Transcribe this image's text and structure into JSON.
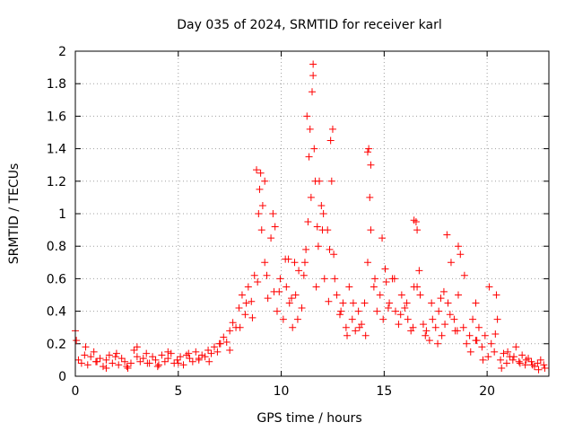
{
  "chart_data": {
    "type": "scatter",
    "title": "Day 035 of 2024, SRMTID for receiver karl",
    "xlabel": "GPS time / hours",
    "ylabel": "SRMTID / TECUs",
    "xlim": [
      0,
      23
    ],
    "ylim": [
      0,
      2
    ],
    "xticks": [
      "0",
      "5",
      "10",
      "15",
      "20"
    ],
    "xtick_values": [
      0,
      5,
      10,
      15,
      20
    ],
    "yticks": [
      "0",
      "0.2",
      "0.4",
      "0.6",
      "0.8",
      "1",
      "1.2",
      "1.4",
      "1.6",
      "1.8",
      "2"
    ],
    "ytick_values": [
      0,
      0.2,
      0.4,
      0.6,
      0.8,
      1.0,
      1.2,
      1.4,
      1.6,
      1.8,
      2.0
    ],
    "grid": true,
    "marker": "+",
    "series": [
      {
        "name": "SRMTID",
        "color": "#ff0000",
        "x": [
          0,
          0.15,
          0.3,
          0.45,
          0.6,
          0.75,
          0.9,
          1.05,
          1.2,
          1.35,
          1.5,
          1.65,
          1.8,
          1.95,
          2.1,
          2.25,
          2.4,
          2.55,
          2.7,
          2.85,
          3.0,
          3.15,
          3.3,
          3.45,
          3.6,
          3.75,
          3.9,
          4.05,
          4.2,
          4.35,
          4.5,
          4.65,
          4.8,
          4.95,
          5.1,
          5.25,
          5.4,
          5.55,
          5.7,
          5.85,
          6.0,
          6.15,
          6.3,
          6.45,
          6.6,
          6.75,
          6.9,
          7.05,
          7.2,
          7.35,
          7.5,
          7.65,
          7.8,
          7.95,
          8.1,
          8.25,
          8.4,
          8.55,
          8.7,
          8.85,
          8.95,
          9.05,
          9.2,
          9.35,
          9.5,
          9.65,
          9.8,
          9.95,
          10.1,
          10.25,
          10.4,
          10.55,
          10.7,
          10.85,
          11.0,
          11.15,
          11.3,
          11.45,
          11.55,
          11.65,
          11.8,
          11.95,
          12.1,
          12.25,
          12.4,
          12.55,
          12.7,
          12.85,
          13.0,
          13.15,
          13.3,
          13.45,
          13.6,
          13.75,
          13.9,
          14.05,
          14.2,
          14.35,
          14.5,
          14.65,
          14.8,
          14.95,
          15.1,
          15.25,
          15.4,
          15.55,
          15.7,
          15.85,
          16.0,
          16.15,
          16.3,
          16.45,
          16.6,
          16.75,
          16.9,
          17.05,
          17.2,
          17.35,
          17.5,
          17.65,
          17.8,
          17.95,
          18.1,
          18.25,
          18.4,
          18.55,
          18.7,
          18.85,
          19.0,
          19.15,
          19.3,
          19.45,
          19.6,
          19.75,
          19.9,
          20.05,
          20.2,
          20.35,
          20.5,
          20.65,
          20.8,
          20.95,
          21.1,
          21.25,
          21.4,
          21.55,
          21.7,
          21.85,
          22.0,
          22.15,
          22.3,
          22.45,
          22.6,
          22.75,
          0.05,
          0.5,
          1.0,
          1.5,
          2.0,
          2.5,
          3.0,
          3.5,
          4.0,
          4.5,
          5.0,
          5.5,
          6.0,
          6.5,
          7.0,
          7.5,
          8.0,
          8.3,
          8.6,
          8.9,
          9.0,
          9.1,
          9.3,
          9.6,
          9.9,
          10.2,
          10.5,
          10.8,
          11.1,
          11.25,
          11.35,
          11.5,
          11.6,
          11.7,
          11.85,
          12.0,
          12.3,
          12.45,
          12.6,
          12.9,
          13.2,
          13.5,
          13.8,
          14.1,
          14.25,
          14.3,
          14.55,
          14.9,
          15.2,
          15.5,
          15.8,
          16.1,
          16.4,
          16.55,
          16.7,
          17.0,
          17.3,
          17.6,
          17.9,
          18.2,
          18.45,
          18.6,
          18.9,
          19.2,
          19.5,
          19.8,
          20.1,
          20.4,
          20.7,
          21.0,
          21.3,
          21.6,
          21.9,
          22.2,
          22.5,
          22.8,
          8.8,
          9.2,
          9.7,
          10.35,
          10.65,
          11.2,
          11.4,
          11.55,
          11.75,
          12.05,
          12.35,
          12.5,
          14.2,
          14.35,
          15.05,
          16.45,
          16.6,
          17.75,
          18.05,
          18.6,
          19.45,
          20.45
        ],
        "y": [
          0.28,
          0.1,
          0.08,
          0.13,
          0.07,
          0.12,
          0.15,
          0.09,
          0.11,
          0.06,
          0.1,
          0.13,
          0.08,
          0.12,
          0.07,
          0.11,
          0.09,
          0.05,
          0.08,
          0.16,
          0.12,
          0.09,
          0.11,
          0.14,
          0.08,
          0.12,
          0.1,
          0.07,
          0.13,
          0.09,
          0.11,
          0.14,
          0.08,
          0.1,
          0.12,
          0.07,
          0.13,
          0.11,
          0.09,
          0.15,
          0.1,
          0.13,
          0.12,
          0.16,
          0.14,
          0.18,
          0.15,
          0.2,
          0.24,
          0.21,
          0.28,
          0.33,
          0.3,
          0.42,
          0.5,
          0.38,
          0.55,
          0.46,
          0.62,
          0.58,
          1.15,
          0.9,
          0.7,
          0.48,
          0.85,
          0.52,
          0.4,
          0.6,
          0.35,
          0.55,
          0.45,
          0.3,
          0.5,
          0.65,
          0.42,
          0.7,
          0.95,
          1.1,
          1.85,
          1.2,
          0.8,
          1.05,
          0.6,
          0.9,
          1.45,
          0.75,
          0.5,
          0.38,
          0.45,
          0.3,
          0.55,
          0.35,
          0.28,
          0.4,
          0.32,
          0.45,
          0.7,
          1.3,
          0.55,
          0.4,
          0.5,
          0.35,
          0.58,
          0.45,
          0.6,
          0.4,
          0.32,
          0.5,
          0.42,
          0.35,
          0.28,
          0.55,
          0.9,
          0.5,
          0.32,
          0.28,
          0.22,
          0.35,
          0.3,
          0.4,
          0.25,
          0.32,
          0.45,
          0.7,
          0.35,
          0.28,
          0.75,
          0.3,
          0.2,
          0.25,
          0.35,
          0.22,
          0.3,
          0.18,
          0.25,
          0.12,
          0.2,
          0.15,
          0.35,
          0.1,
          0.14,
          0.08,
          0.12,
          0.1,
          0.18,
          0.09,
          0.13,
          0.07,
          0.11,
          0.09,
          0.06,
          0.08,
          0.1,
          0.07,
          0.22,
          0.18,
          0.09,
          0.05,
          0.14,
          0.06,
          0.18,
          0.08,
          0.06,
          0.15,
          0.08,
          0.14,
          0.11,
          0.09,
          0.2,
          0.16,
          0.3,
          0.45,
          0.36,
          1.0,
          1.25,
          1.05,
          0.62,
          1.0,
          0.52,
          0.72,
          0.48,
          0.35,
          0.62,
          1.6,
          1.35,
          1.75,
          1.4,
          0.55,
          1.2,
          0.9,
          0.46,
          1.2,
          0.6,
          0.4,
          0.25,
          0.45,
          0.3,
          0.25,
          1.4,
          1.1,
          0.6,
          0.85,
          0.42,
          0.6,
          0.38,
          0.45,
          0.3,
          0.95,
          0.65,
          0.25,
          0.45,
          0.2,
          0.52,
          0.38,
          0.28,
          0.8,
          0.62,
          0.15,
          0.22,
          0.1,
          0.55,
          0.26,
          0.05,
          0.15,
          0.12,
          0.08,
          0.1,
          0.07,
          0.04,
          0.05,
          1.27,
          1.2,
          0.92,
          0.72,
          0.7,
          0.78,
          1.52,
          1.92,
          0.92,
          1.0,
          0.78,
          1.52,
          1.38,
          0.9,
          0.66,
          0.96,
          0.55,
          0.48,
          0.87,
          0.5,
          0.45,
          0.5
        ]
      }
    ]
  }
}
